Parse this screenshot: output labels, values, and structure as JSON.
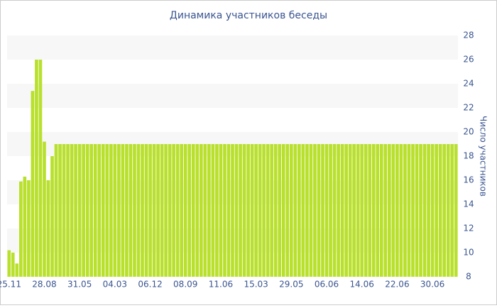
{
  "chart_data": {
    "type": "bar",
    "title": "Динамика участников беседы",
    "y_axis_label": "Число участников",
    "categories": [
      "25.11",
      null,
      null,
      null,
      null,
      null,
      null,
      null,
      null,
      "28.08",
      null,
      null,
      null,
      null,
      null,
      null,
      null,
      null,
      "31.05",
      null,
      null,
      null,
      null,
      null,
      null,
      null,
      null,
      "04.03",
      null,
      null,
      null,
      null,
      null,
      null,
      null,
      null,
      "06.12",
      null,
      null,
      null,
      null,
      null,
      null,
      null,
      null,
      "08.09",
      null,
      null,
      null,
      null,
      null,
      null,
      null,
      null,
      "11.06",
      null,
      null,
      null,
      null,
      null,
      null,
      null,
      null,
      "15.03",
      null,
      null,
      null,
      null,
      null,
      null,
      null,
      null,
      "29.05",
      null,
      null,
      null,
      null,
      null,
      null,
      null,
      null,
      "06.06",
      null,
      null,
      null,
      null,
      null,
      null,
      null,
      null,
      "14.06",
      null,
      null,
      null,
      null,
      null,
      null,
      null,
      null,
      "22.06",
      null,
      null,
      null,
      null,
      null,
      null,
      null,
      null,
      "30.06",
      null,
      null,
      null,
      null,
      null,
      null
    ],
    "values": [
      10.2,
      10,
      9.1,
      15.9,
      16.3,
      16,
      23.4,
      26,
      26,
      19.2,
      16,
      18,
      19,
      19,
      19,
      19,
      19,
      19,
      19,
      19,
      19,
      19,
      19,
      19,
      19,
      19,
      19,
      19,
      19,
      19,
      19,
      19,
      19,
      19,
      19,
      19,
      19,
      19,
      19,
      19,
      19,
      19,
      19,
      19,
      19,
      19,
      19,
      19,
      19,
      19,
      19,
      19,
      19,
      19,
      19,
      19,
      19,
      19,
      19,
      19,
      19,
      19,
      19,
      19,
      19,
      19,
      19,
      19,
      19,
      19,
      19,
      19,
      19,
      19,
      19,
      19,
      19,
      19,
      19,
      19,
      19,
      19,
      19,
      19,
      19,
      19,
      19,
      19,
      19,
      19,
      19,
      19,
      19,
      19,
      19,
      19,
      19,
      19,
      19,
      19,
      19,
      19,
      19,
      19,
      19,
      19,
      19,
      19,
      19,
      19,
      19,
      19,
      19,
      19,
      19
    ],
    "color": "#b8e02c",
    "ylim": [
      8,
      28
    ],
    "yticks": [
      8,
      10,
      12,
      14,
      16,
      18,
      20,
      22,
      24,
      26,
      28
    ],
    "grid": true,
    "y_axis_side": "right"
  }
}
